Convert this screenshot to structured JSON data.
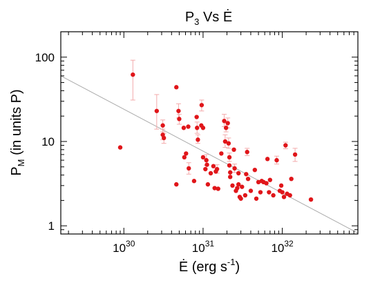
{
  "chart_data": {
    "type": "scatter",
    "title": {
      "main": "P",
      "sub": "3",
      "rest": " Vs Ė"
    },
    "xlabel": {
      "main": "Ė (erg s",
      "sup": "-1",
      "rest": ")"
    },
    "ylabel": {
      "main": "P",
      "sub": "M",
      "rest": " (in units P)"
    },
    "x_scale": "log",
    "y_scale": "log",
    "xlim": [
      1.6e+29,
      9e+32
    ],
    "ylim": [
      0.8,
      200
    ],
    "grid": false,
    "legend": "none",
    "x_ticks": [
      {
        "value": 1e+30,
        "base": "10",
        "exp": "30"
      },
      {
        "value": 1e+31,
        "base": "10",
        "exp": "31"
      },
      {
        "value": 1e+32,
        "base": "10",
        "exp": "32"
      }
    ],
    "y_ticks": [
      {
        "value": 1,
        "label": "1"
      },
      {
        "value": 10,
        "label": "10"
      },
      {
        "value": 100,
        "label": "100"
      }
    ],
    "fit_line": {
      "from": [
        1.6e+29,
        60
      ],
      "to": [
        9e+32,
        0.82
      ],
      "color": "#aaaaaa"
    },
    "marker_color": "#e0161a",
    "error_color": "#f3a9aa",
    "points": [
      {
        "x": 9e+29,
        "y": 8.5
      },
      {
        "x": 1.3e+30,
        "y": 62,
        "yerr": [
          31,
          92
        ]
      },
      {
        "x": 2.6e+30,
        "y": 23,
        "yerr": [
          14,
          36
        ]
      },
      {
        "x": 3.1e+30,
        "y": 15.5,
        "yerr": [
          13,
          18
        ]
      },
      {
        "x": 3.1e+30,
        "y": 12,
        "yerr": [
          10.5,
          14
        ]
      },
      {
        "x": 3.2e+30,
        "y": 11,
        "yerr": [
          9.5,
          12.5
        ]
      },
      {
        "x": 4.6e+30,
        "y": 44
      },
      {
        "x": 4.9e+30,
        "y": 23,
        "yerr": [
          19,
          28
        ]
      },
      {
        "x": 5e+30,
        "y": 18.5,
        "yerr": [
          16,
          21
        ]
      },
      {
        "x": 4.6e+30,
        "y": 3.1
      },
      {
        "x": 5.7e+30,
        "y": 14.5
      },
      {
        "x": 5.8e+30,
        "y": 6.5
      },
      {
        "x": 6.1e+30,
        "y": 7.2
      },
      {
        "x": 6.5e+30,
        "y": 15
      },
      {
        "x": 6.6e+30,
        "y": 4.8,
        "yerr": [
          4.1,
          5.6
        ]
      },
      {
        "x": 7.7e+30,
        "y": 3.4
      },
      {
        "x": 8.3e+30,
        "y": 19.5
      },
      {
        "x": 8.4e+30,
        "y": 14.5,
        "yerr": [
          12.5,
          17
        ]
      },
      {
        "x": 8.6e+30,
        "y": 10.5,
        "yerr": [
          9.5,
          12
        ]
      },
      {
        "x": 9.6e+30,
        "y": 27,
        "yerr": [
          23,
          31
        ]
      },
      {
        "x": 9.5e+30,
        "y": 15.5
      },
      {
        "x": 1e+31,
        "y": 14.5
      },
      {
        "x": 1e+31,
        "y": 6.5
      },
      {
        "x": 1.07e+31,
        "y": 4.7
      },
      {
        "x": 1.1e+31,
        "y": 6.0,
        "yerr": [
          5.2,
          7
        ]
      },
      {
        "x": 1.12e+31,
        "y": 5.3
      },
      {
        "x": 1.15e+31,
        "y": 3.1
      },
      {
        "x": 1.25e+31,
        "y": 4.2
      },
      {
        "x": 1.35e+31,
        "y": 5.1
      },
      {
        "x": 1.4e+31,
        "y": 2.8
      },
      {
        "x": 1.45e+31,
        "y": 4.4
      },
      {
        "x": 1.5e+31,
        "y": 4.7,
        "yerr": [
          4.2,
          5.3
        ]
      },
      {
        "x": 1.55e+31,
        "y": 2.75
      },
      {
        "x": 1.7e+31,
        "y": 7.2
      },
      {
        "x": 1.85e+31,
        "y": 17.5,
        "yerr": [
          15,
          21
        ]
      },
      {
        "x": 1.9e+31,
        "y": 10,
        "yerr": [
          8.5,
          12
        ]
      },
      {
        "x": 1.95e+31,
        "y": 14.5,
        "yerr": [
          13,
          17
        ]
      },
      {
        "x": 2.05e+31,
        "y": 16.5,
        "yerr": [
          14.5,
          19
        ]
      },
      {
        "x": 2.1e+31,
        "y": 9.5,
        "yerr": [
          8.3,
          11
        ]
      },
      {
        "x": 2.15e+31,
        "y": 6.5,
        "yerr": [
          5.8,
          7.3
        ]
      },
      {
        "x": 2.15e+31,
        "y": 5.2
      },
      {
        "x": 2.2e+31,
        "y": 4.3
      },
      {
        "x": 2.2e+31,
        "y": 3.8
      },
      {
        "x": 2.35e+31,
        "y": 3.0
      },
      {
        "x": 2.45e+31,
        "y": 8.0
      },
      {
        "x": 2.5e+31,
        "y": 4.8,
        "yerr": [
          4.3,
          5.4
        ]
      },
      {
        "x": 2.6e+31,
        "y": 2.6
      },
      {
        "x": 2.7e+31,
        "y": 2.8
      },
      {
        "x": 2.8e+31,
        "y": 3.1
      },
      {
        "x": 2.8e+31,
        "y": 4.2
      },
      {
        "x": 2.9e+31,
        "y": 2.2
      },
      {
        "x": 3e+31,
        "y": 2.1
      },
      {
        "x": 3.1e+31,
        "y": 2.9
      },
      {
        "x": 3.4e+31,
        "y": 2.3
      },
      {
        "x": 3.5e+31,
        "y": 4.1
      },
      {
        "x": 3.6e+31,
        "y": 7.5,
        "yerr": [
          6.8,
          8.3
        ]
      },
      {
        "x": 3.7e+31,
        "y": 3.6
      },
      {
        "x": 4e+31,
        "y": 2.6
      },
      {
        "x": 4.5e+31,
        "y": 4.6
      },
      {
        "x": 4.7e+31,
        "y": 2.1
      },
      {
        "x": 5e+31,
        "y": 3.3
      },
      {
        "x": 5.3e+31,
        "y": 2.5
      },
      {
        "x": 5.5e+31,
        "y": 3.4
      },
      {
        "x": 5.8e+31,
        "y": 3.3
      },
      {
        "x": 6.3e+31,
        "y": 3.2
      },
      {
        "x": 6.5e+31,
        "y": 6.2
      },
      {
        "x": 6.8e+31,
        "y": 2.5
      },
      {
        "x": 7e+31,
        "y": 3.5
      },
      {
        "x": 7.7e+31,
        "y": 2.3
      },
      {
        "x": 8.5e+31,
        "y": 6.0,
        "yerr": [
          5.4,
          6.7
        ]
      },
      {
        "x": 9.3e+31,
        "y": 2.6
      },
      {
        "x": 9.7e+31,
        "y": 3.0
      },
      {
        "x": 1e+32,
        "y": 2.5
      },
      {
        "x": 1.05e+32,
        "y": 2.2
      },
      {
        "x": 1.1e+32,
        "y": 9.0,
        "yerr": [
          8.2,
          9.8
        ]
      },
      {
        "x": 1.15e+32,
        "y": 2.4
      },
      {
        "x": 1.25e+32,
        "y": 2.3
      },
      {
        "x": 1.3e+32,
        "y": 3.6
      },
      {
        "x": 1.45e+32,
        "y": 7.0,
        "yerr": [
          5.8,
          8.3
        ]
      },
      {
        "x": 2.3e+32,
        "y": 2.05
      }
    ]
  }
}
